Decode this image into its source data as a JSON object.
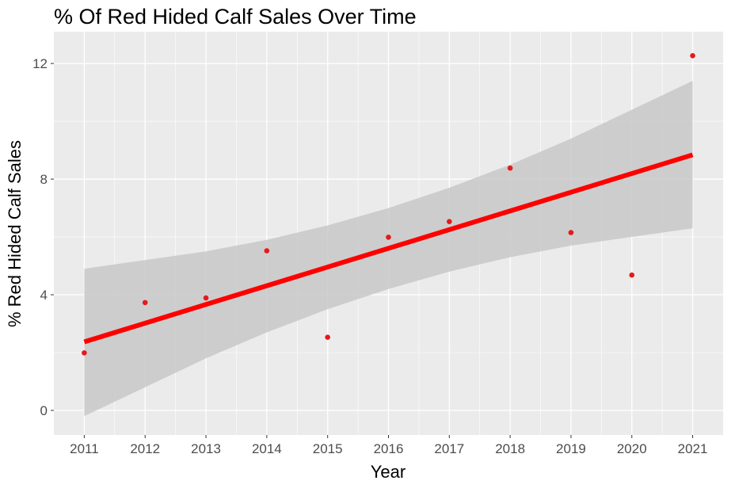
{
  "chart_data": {
    "type": "scatter",
    "title": "% Of Red Hided Calf Sales Over Time",
    "xlabel": "Year",
    "ylabel": "% Red Hided Calf Sales",
    "x": [
      2011,
      2012,
      2013,
      2014,
      2015,
      2016,
      2017,
      2018,
      2019,
      2020,
      2021
    ],
    "y": [
      1.99,
      3.73,
      3.89,
      5.52,
      2.53,
      5.99,
      6.53,
      8.38,
      6.15,
      4.68,
      12.27
    ],
    "fit": {
      "method": "linear",
      "start": [
        2011,
        2.37
      ],
      "end": [
        2021,
        8.84
      ],
      "ci_lower": [
        -0.2,
        0.8,
        1.8,
        2.7,
        3.5,
        4.2,
        4.8,
        5.3,
        5.7,
        6.0,
        6.3
      ],
      "ci_upper": [
        4.9,
        5.2,
        5.5,
        5.9,
        6.4,
        7.0,
        7.7,
        8.5,
        9.4,
        10.4,
        11.4
      ]
    },
    "xticks": [
      "2011",
      "2012",
      "2013",
      "2014",
      "2015",
      "2016",
      "2017",
      "2018",
      "2019",
      "2020",
      "2021"
    ],
    "yticks": [
      "0",
      "4",
      "8",
      "12"
    ],
    "xlim": [
      2010.5,
      2021.5
    ],
    "ylim": [
      -0.85,
      13.1
    ],
    "grid": true,
    "colors": {
      "point": "#E41A1C",
      "line": "#FF0000",
      "band": "#C8C8C8",
      "panel": "#EBEBEB"
    }
  }
}
